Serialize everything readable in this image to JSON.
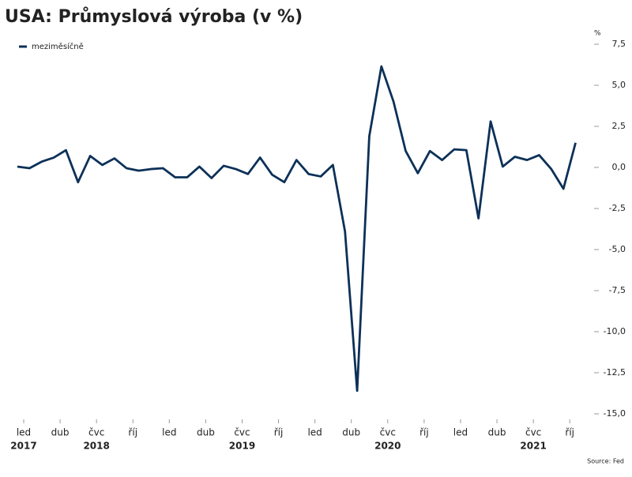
{
  "chart_data": {
    "type": "line",
    "title": "USA: Průmyslová výroba (v %)",
    "y_unit": "%",
    "source": "Source: Fed",
    "categories": [
      "led",
      null,
      null,
      "dub",
      null,
      null,
      "čvc",
      null,
      null,
      "říj",
      null,
      null,
      "led",
      null,
      null,
      "dub",
      null,
      null,
      "čvc",
      null,
      null,
      "říj",
      null,
      null,
      "led",
      null,
      null,
      "dub",
      null,
      null,
      "čvc",
      null,
      null,
      "říj",
      null,
      null,
      "led",
      null,
      null,
      "dub",
      null,
      null,
      "čvc",
      null,
      null,
      "říj",
      null
    ],
    "years": [
      "2017",
      null,
      null,
      null,
      null,
      null,
      "2018",
      null,
      null,
      null,
      null,
      null,
      null,
      null,
      null,
      null,
      null,
      null,
      "2019",
      null,
      null,
      null,
      null,
      null,
      null,
      null,
      null,
      null,
      null,
      null,
      "2020",
      null,
      null,
      null,
      null,
      null,
      null,
      null,
      null,
      null,
      null,
      null,
      "2021",
      null,
      null,
      null,
      null
    ],
    "series": [
      {
        "name": "meziměsíčně",
        "color": "#0c3158",
        "values": [
          0.05,
          -0.05,
          0.35,
          0.6,
          1.05,
          -0.9,
          0.7,
          0.15,
          0.55,
          -0.05,
          -0.2,
          -0.1,
          -0.05,
          -0.6,
          -0.6,
          0.05,
          -0.65,
          0.1,
          -0.1,
          -0.4,
          0.6,
          -0.45,
          -0.9,
          0.45,
          -0.4,
          -0.55,
          0.15,
          -3.9,
          -13.6,
          1.9,
          6.15,
          4.0,
          1.0,
          -0.35,
          1.0,
          0.45,
          1.1,
          1.05,
          -3.1,
          2.8,
          0.05,
          0.65,
          0.45,
          0.75,
          -0.1,
          -1.3,
          1.5
        ]
      }
    ],
    "ylim": [
      -15,
      7.5
    ],
    "yticks": [
      {
        "value": -15,
        "label": "-15,0"
      },
      {
        "value": -12.5,
        "label": "-12,5"
      },
      {
        "value": -10,
        "label": "-10,0"
      },
      {
        "value": -7.5,
        "label": "-7,5"
      },
      {
        "value": -5,
        "label": "-5,0"
      },
      {
        "value": -2.5,
        "label": "-2,5"
      },
      {
        "value": 0,
        "label": "0,0"
      },
      {
        "value": 2.5,
        "label": "2,5"
      },
      {
        "value": 5,
        "label": "5,0"
      },
      {
        "value": 7.5,
        "label": "7,5"
      }
    ],
    "legend": "top-left"
  }
}
